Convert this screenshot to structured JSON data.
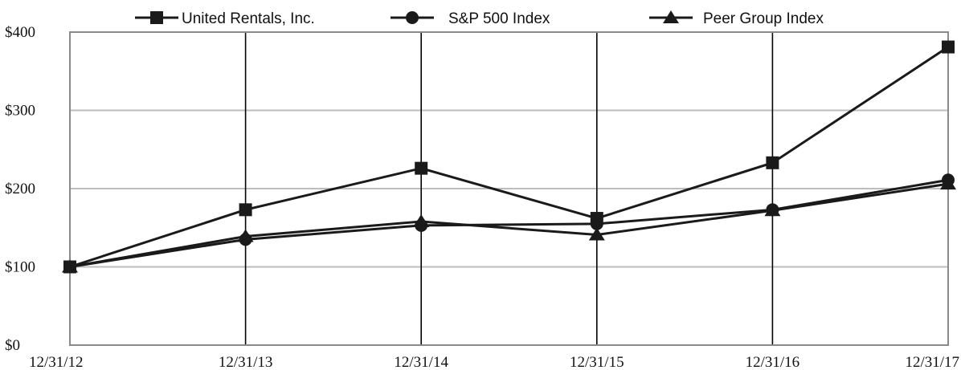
{
  "chart_data": {
    "type": "line",
    "title": "",
    "xlabel": "",
    "ylabel": "",
    "categories": [
      "12/31/12",
      "12/31/13",
      "12/31/14",
      "12/31/15",
      "12/31/16",
      "12/31/17"
    ],
    "y_tick_labels": [
      "$400",
      "$300",
      "$200",
      "$100",
      "$0"
    ],
    "y_ticks": [
      400,
      300,
      200,
      100,
      0
    ],
    "ylim": [
      0,
      400
    ],
    "grid": "horizontal gray gridlines; vertical black lines at each year",
    "legend_position": "top",
    "series": [
      {
        "name": "United Rentals, Inc.",
        "marker": "square",
        "values": [
          100,
          173,
          226,
          162,
          233,
          381
        ]
      },
      {
        "name": "S&P 500 Index",
        "marker": "circle",
        "values": [
          100,
          135,
          153,
          155,
          173,
          211
        ]
      },
      {
        "name": "Peer Group Index",
        "marker": "triangle",
        "values": [
          100,
          139,
          158,
          141,
          172,
          206
        ]
      }
    ],
    "colors": {
      "line": "#1a1a1a",
      "grid": "#bdbdbd",
      "frame": "#8a8a8a"
    }
  }
}
